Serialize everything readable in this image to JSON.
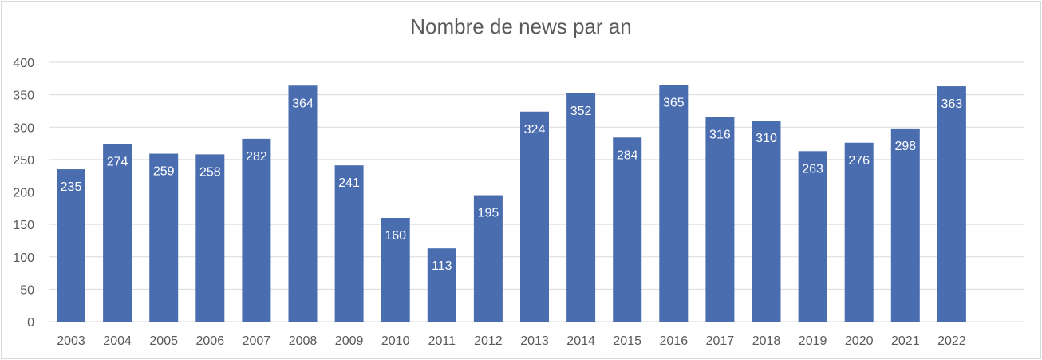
{
  "chart_data": {
    "type": "bar",
    "title": "Nombre de news par an",
    "xlabel": "",
    "ylabel": "",
    "categories": [
      "2003",
      "2004",
      "2005",
      "2006",
      "2007",
      "2008",
      "2009",
      "2010",
      "2011",
      "2012",
      "2013",
      "2014",
      "2015",
      "2016",
      "2017",
      "2018",
      "2019",
      "2020",
      "2021",
      "2022"
    ],
    "values": [
      235,
      274,
      259,
      258,
      282,
      364,
      241,
      160,
      113,
      195,
      324,
      352,
      284,
      365,
      316,
      310,
      263,
      276,
      298,
      363
    ],
    "ylim": [
      0,
      400
    ],
    "yticks": [
      0,
      50,
      100,
      150,
      200,
      250,
      300,
      350,
      400
    ],
    "grid": true,
    "legend": "none",
    "data_labels": true,
    "colors": {
      "bar": "#4a6db0",
      "grid": "#d9d9d9",
      "text": "#595959",
      "label": "#ffffff"
    }
  }
}
